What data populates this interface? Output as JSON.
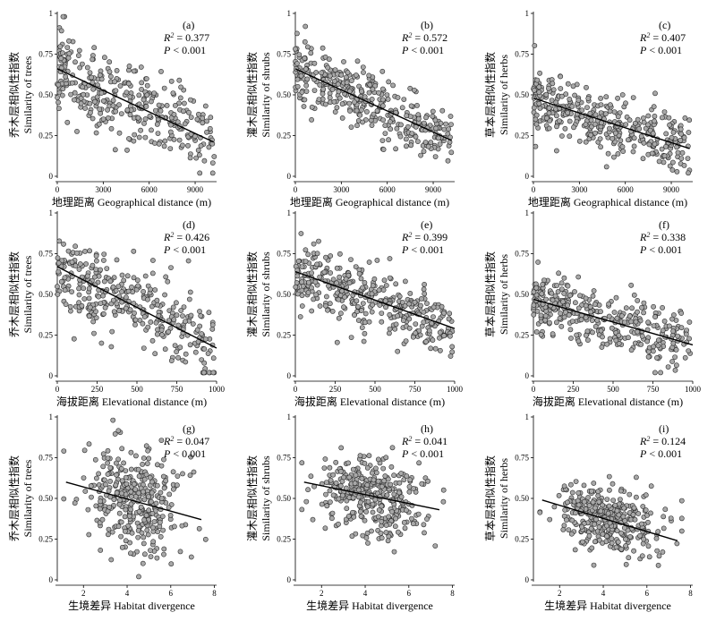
{
  "chart_data": [
    {
      "id": "a",
      "type": "scatter",
      "panel_label": "(a)",
      "r2": "0.377",
      "p": "< 0.001",
      "ylabel_cn": "乔木层相似性指数",
      "ylabel_en": "Similarity of trees",
      "xlabel_cn": "地理距离",
      "xlabel_en": "Geographical distance (m)",
      "xlim": [
        0,
        10400
      ],
      "ylim": [
        0,
        1
      ],
      "xticks": [
        0,
        3000,
        6000,
        9000
      ],
      "yticks": [
        0,
        0.25,
        0.5,
        0.75,
        1
      ],
      "fit": [
        [
          0,
          0.66
        ],
        [
          10200,
          0.21
        ]
      ],
      "n": 330,
      "spread": 0.13,
      "seed": 11
    },
    {
      "id": "b",
      "type": "scatter",
      "panel_label": "(b)",
      "r2": "0.572",
      "p": "< 0.001",
      "ylabel_cn": "灌木层相似性指数",
      "ylabel_en": "Similarity of shrubs",
      "xlabel_cn": "地理距离",
      "xlabel_en": "Geographical distance (m)",
      "xlim": [
        0,
        10400
      ],
      "ylim": [
        0,
        1
      ],
      "xticks": [
        0,
        3000,
        6000,
        9000
      ],
      "yticks": [
        0,
        0.25,
        0.5,
        0.75,
        1
      ],
      "fit": [
        [
          0,
          0.66
        ],
        [
          10200,
          0.22
        ]
      ],
      "n": 360,
      "spread": 0.09,
      "seed": 22
    },
    {
      "id": "c",
      "type": "scatter",
      "panel_label": "(c)",
      "r2": "0.407",
      "p": "< 0.001",
      "ylabel_cn": "草本层相似性指数",
      "ylabel_en": "Similarity of herbs",
      "xlabel_cn": "地理距离",
      "xlabel_en": "Geographical distance (m)",
      "xlim": [
        0,
        10400
      ],
      "ylim": [
        0,
        1
      ],
      "xticks": [
        0,
        3000,
        6000,
        9000
      ],
      "yticks": [
        0,
        0.25,
        0.5,
        0.75,
        1
      ],
      "fit": [
        [
          0,
          0.48
        ],
        [
          10200,
          0.17
        ]
      ],
      "n": 360,
      "spread": 0.09,
      "seed": 33
    },
    {
      "id": "d",
      "type": "scatter",
      "panel_label": "(d)",
      "r2": "0.426",
      "p": "< 0.001",
      "ylabel_cn": "乔木层相似性指数",
      "ylabel_en": "Similarity of trees",
      "xlabel_cn": "海拔距离",
      "xlabel_en": "Elevational distance (m)",
      "xlim": [
        0,
        1000
      ],
      "ylim": [
        0,
        1
      ],
      "xticks": [
        0,
        250,
        500,
        750,
        1000
      ],
      "yticks": [
        0,
        0.25,
        0.5,
        0.75,
        1
      ],
      "fit": [
        [
          0,
          0.67
        ],
        [
          1000,
          0.17
        ]
      ],
      "n": 330,
      "spread": 0.13,
      "seed": 44
    },
    {
      "id": "e",
      "type": "scatter",
      "panel_label": "(e)",
      "r2": "0.399",
      "p": "< 0.001",
      "ylabel_cn": "灌木层相似性指数",
      "ylabel_en": "Similarity of shrubs",
      "xlabel_cn": "海拔距离",
      "xlabel_en": "Elevational distance (m)",
      "xlim": [
        0,
        1000
      ],
      "ylim": [
        0,
        1
      ],
      "xticks": [
        0,
        250,
        500,
        750,
        1000
      ],
      "yticks": [
        0,
        0.25,
        0.5,
        0.75,
        1
      ],
      "fit": [
        [
          0,
          0.64
        ],
        [
          1000,
          0.29
        ]
      ],
      "n": 360,
      "spread": 0.1,
      "seed": 55
    },
    {
      "id": "f",
      "type": "scatter",
      "panel_label": "(f)",
      "r2": "0.338",
      "p": "< 0.001",
      "ylabel_cn": "草本层相似性指数",
      "ylabel_en": "Similarity of herbs",
      "xlabel_cn": "海拔距离",
      "xlabel_en": "Elevational distance (m)",
      "xlim": [
        0,
        1000
      ],
      "ylim": [
        0,
        1
      ],
      "xticks": [
        0,
        250,
        500,
        750,
        1000
      ],
      "yticks": [
        0,
        0.25,
        0.5,
        0.75,
        1
      ],
      "fit": [
        [
          0,
          0.47
        ],
        [
          1000,
          0.19
        ]
      ],
      "n": 360,
      "spread": 0.09,
      "seed": 66
    },
    {
      "id": "g",
      "type": "scatter",
      "panel_label": "(g)",
      "r2": "0.047",
      "p": "< 0.001",
      "ylabel_cn": "乔木层相似性指数",
      "ylabel_en": "Similarity of trees",
      "xlabel_cn": "生境差异",
      "xlabel_en": "Habitat divergence",
      "xlim": [
        0.8,
        8.1
      ],
      "ylim": [
        0,
        1
      ],
      "xticks": [
        2,
        4,
        6,
        8
      ],
      "yticks": [
        0,
        0.25,
        0.5,
        0.75,
        1
      ],
      "fit": [
        [
          1.2,
          0.6
        ],
        [
          7.4,
          0.37
        ]
      ],
      "n": 330,
      "spread": 0.17,
      "seed": 77
    },
    {
      "id": "h",
      "type": "scatter",
      "panel_label": "(h)",
      "r2": "0.041",
      "p": "< 0.001",
      "ylabel_cn": "灌木层相似性指数",
      "ylabel_en": "Similarity of shrubs",
      "xlabel_cn": "生境差异",
      "xlabel_en": "Habitat divergence",
      "xlim": [
        0.8,
        8.1
      ],
      "ylim": [
        0,
        1
      ],
      "xticks": [
        2,
        4,
        6,
        8
      ],
      "yticks": [
        0,
        0.25,
        0.5,
        0.75,
        1
      ],
      "fit": [
        [
          1.2,
          0.6
        ],
        [
          7.4,
          0.43
        ]
      ],
      "n": 360,
      "spread": 0.12,
      "seed": 88
    },
    {
      "id": "i",
      "type": "scatter",
      "panel_label": "(i)",
      "r2": "0.124",
      "p": "< 0.001",
      "ylabel_cn": "草本层相似性指数",
      "ylabel_en": "Similarity of herbs",
      "xlabel_cn": "生境差异",
      "xlabel_en": "Habitat divergence",
      "xlim": [
        0.8,
        8.1
      ],
      "ylim": [
        0,
        1
      ],
      "xticks": [
        2,
        4,
        6,
        8
      ],
      "yticks": [
        0,
        0.25,
        0.5,
        0.75,
        1
      ],
      "fit": [
        [
          1.2,
          0.49
        ],
        [
          7.4,
          0.24
        ]
      ],
      "n": 360,
      "spread": 0.1,
      "seed": 99
    }
  ],
  "colors": {
    "point_fill": "#a8a8a8",
    "point_stroke": "#2a2a2a",
    "line": "#000000"
  }
}
